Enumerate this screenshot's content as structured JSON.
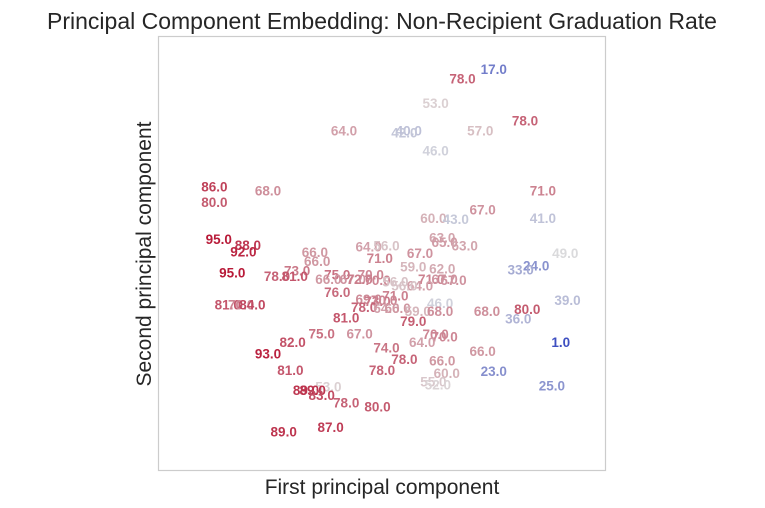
{
  "chart_data": {
    "type": "scatter",
    "title": "Principal Component Embedding: Non-Recipient Graduation Rate",
    "xlabel": "First principal component",
    "ylabel": "Second principal component",
    "xlim": [
      0,
      100
    ],
    "ylim": [
      0,
      100
    ],
    "grid": false,
    "ticks": false,
    "color_scale": {
      "min": 0,
      "max": 100,
      "low": "#3b4cc0",
      "mid": "#dddddd",
      "high": "#b40426",
      "name": "coolwarm"
    },
    "points": [
      {
        "x": 75.0,
        "y": 92.5,
        "v": 17.0
      },
      {
        "x": 68.0,
        "y": 90.3,
        "v": 78.0
      },
      {
        "x": 62.0,
        "y": 84.7,
        "v": 53.0
      },
      {
        "x": 82.0,
        "y": 80.7,
        "v": 78.0
      },
      {
        "x": 41.5,
        "y": 78.3,
        "v": 64.0
      },
      {
        "x": 56.0,
        "y": 78.3,
        "v": 40.0
      },
      {
        "x": 55.0,
        "y": 77.9,
        "v": 42.0
      },
      {
        "x": 72.0,
        "y": 78.3,
        "v": 57.0
      },
      {
        "x": 62.0,
        "y": 73.7,
        "v": 46.0
      },
      {
        "x": 12.5,
        "y": 65.4,
        "v": 86.0
      },
      {
        "x": 24.5,
        "y": 64.5,
        "v": 68.0
      },
      {
        "x": 12.5,
        "y": 61.9,
        "v": 80.0
      },
      {
        "x": 86.0,
        "y": 64.5,
        "v": 71.0
      },
      {
        "x": 72.5,
        "y": 60.1,
        "v": 67.0
      },
      {
        "x": 61.5,
        "y": 58.2,
        "v": 60.0
      },
      {
        "x": 66.5,
        "y": 58.0,
        "v": 43.0
      },
      {
        "x": 86.0,
        "y": 58.2,
        "v": 41.0
      },
      {
        "x": 63.5,
        "y": 53.7,
        "v": 63.0
      },
      {
        "x": 64.0,
        "y": 52.7,
        "v": 65.0
      },
      {
        "x": 68.5,
        "y": 51.9,
        "v": 63.0
      },
      {
        "x": 13.5,
        "y": 53.3,
        "v": 95.0
      },
      {
        "x": 20.0,
        "y": 52.0,
        "v": 88.0
      },
      {
        "x": 19.0,
        "y": 50.5,
        "v": 92.0
      },
      {
        "x": 47.0,
        "y": 51.6,
        "v": 64.0
      },
      {
        "x": 51.0,
        "y": 51.8,
        "v": 56.0
      },
      {
        "x": 35.0,
        "y": 50.3,
        "v": 66.0
      },
      {
        "x": 58.5,
        "y": 50.1,
        "v": 67.0
      },
      {
        "x": 49.5,
        "y": 49.0,
        "v": 71.0
      },
      {
        "x": 91.0,
        "y": 50.1,
        "v": 49.0
      },
      {
        "x": 35.5,
        "y": 48.3,
        "v": 66.0
      },
      {
        "x": 57.0,
        "y": 47.0,
        "v": 59.0
      },
      {
        "x": 63.5,
        "y": 46.5,
        "v": 62.0
      },
      {
        "x": 84.5,
        "y": 47.2,
        "v": 24.0
      },
      {
        "x": 81.0,
        "y": 46.3,
        "v": 33.0
      },
      {
        "x": 31.0,
        "y": 46.1,
        "v": 73.0
      },
      {
        "x": 40.0,
        "y": 45.2,
        "v": 75.0
      },
      {
        "x": 47.5,
        "y": 45.2,
        "v": 70.0
      },
      {
        "x": 16.5,
        "y": 45.6,
        "v": 95.0
      },
      {
        "x": 26.5,
        "y": 44.8,
        "v": 78.0
      },
      {
        "x": 30.5,
        "y": 44.8,
        "v": 81.0
      },
      {
        "x": 38.0,
        "y": 44.1,
        "v": 66.0
      },
      {
        "x": 43.5,
        "y": 44.1,
        "v": 67.0
      },
      {
        "x": 45.0,
        "y": 44.1,
        "v": 72.0
      },
      {
        "x": 49.0,
        "y": 43.9,
        "v": 70.0
      },
      {
        "x": 53.0,
        "y": 43.5,
        "v": 56.0
      },
      {
        "x": 61.0,
        "y": 44.1,
        "v": 71.0
      },
      {
        "x": 64.0,
        "y": 44.1,
        "v": 67.0
      },
      {
        "x": 66.0,
        "y": 43.9,
        "v": 67.0
      },
      {
        "x": 58.5,
        "y": 42.6,
        "v": 64.0
      },
      {
        "x": 55.0,
        "y": 42.6,
        "v": 56.0
      },
      {
        "x": 40.0,
        "y": 41.1,
        "v": 76.0
      },
      {
        "x": 53.0,
        "y": 40.3,
        "v": 71.0
      },
      {
        "x": 47.0,
        "y": 39.5,
        "v": 69.0
      },
      {
        "x": 49.0,
        "y": 39.1,
        "v": 73.0
      },
      {
        "x": 50.5,
        "y": 39.3,
        "v": 70.0
      },
      {
        "x": 63.0,
        "y": 38.6,
        "v": 46.0
      },
      {
        "x": 91.5,
        "y": 39.3,
        "v": 39.0
      },
      {
        "x": 15.5,
        "y": 38.2,
        "v": 81.0
      },
      {
        "x": 18.5,
        "y": 38.2,
        "v": 70.0
      },
      {
        "x": 21.0,
        "y": 38.2,
        "v": 84.0
      },
      {
        "x": 46.0,
        "y": 37.7,
        "v": 78.0
      },
      {
        "x": 51.0,
        "y": 37.5,
        "v": 64.0
      },
      {
        "x": 53.5,
        "y": 37.5,
        "v": 66.0
      },
      {
        "x": 58.0,
        "y": 36.7,
        "v": 59.0
      },
      {
        "x": 63.0,
        "y": 36.7,
        "v": 68.0
      },
      {
        "x": 73.5,
        "y": 36.7,
        "v": 68.0
      },
      {
        "x": 82.5,
        "y": 37.2,
        "v": 80.0
      },
      {
        "x": 80.5,
        "y": 35.0,
        "v": 36.0
      },
      {
        "x": 42.0,
        "y": 35.2,
        "v": 81.0
      },
      {
        "x": 57.0,
        "y": 34.4,
        "v": 79.0
      },
      {
        "x": 36.5,
        "y": 31.6,
        "v": 75.0
      },
      {
        "x": 45.0,
        "y": 31.6,
        "v": 67.0
      },
      {
        "x": 62.0,
        "y": 31.4,
        "v": 70.0
      },
      {
        "x": 64.0,
        "y": 30.9,
        "v": 70.0
      },
      {
        "x": 30.0,
        "y": 29.6,
        "v": 82.0
      },
      {
        "x": 59.0,
        "y": 29.6,
        "v": 64.0
      },
      {
        "x": 51.0,
        "y": 28.3,
        "v": 74.0
      },
      {
        "x": 72.5,
        "y": 27.5,
        "v": 66.0
      },
      {
        "x": 90.0,
        "y": 29.6,
        "v": 1.0
      },
      {
        "x": 24.5,
        "y": 27.0,
        "v": 93.0
      },
      {
        "x": 55.0,
        "y": 25.7,
        "v": 78.0
      },
      {
        "x": 63.5,
        "y": 25.3,
        "v": 66.0
      },
      {
        "x": 29.5,
        "y": 23.1,
        "v": 81.0
      },
      {
        "x": 50.0,
        "y": 23.1,
        "v": 78.0
      },
      {
        "x": 64.5,
        "y": 22.5,
        "v": 60.0
      },
      {
        "x": 75.0,
        "y": 22.9,
        "v": 23.0
      },
      {
        "x": 61.5,
        "y": 20.5,
        "v": 55.0
      },
      {
        "x": 62.5,
        "y": 19.8,
        "v": 52.0
      },
      {
        "x": 88.0,
        "y": 19.6,
        "v": 25.0
      },
      {
        "x": 38.0,
        "y": 19.4,
        "v": 53.0
      },
      {
        "x": 33.0,
        "y": 18.5,
        "v": 89.0
      },
      {
        "x": 34.5,
        "y": 18.5,
        "v": 89.0
      },
      {
        "x": 36.5,
        "y": 17.4,
        "v": 83.0
      },
      {
        "x": 42.0,
        "y": 15.7,
        "v": 78.0
      },
      {
        "x": 49.0,
        "y": 14.8,
        "v": 80.0
      },
      {
        "x": 28.0,
        "y": 9.0,
        "v": 89.0
      },
      {
        "x": 38.5,
        "y": 10.0,
        "v": 87.0
      }
    ]
  }
}
